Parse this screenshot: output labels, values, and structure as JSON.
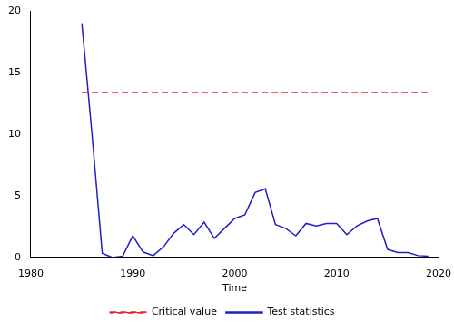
{
  "chart_data": {
    "type": "line",
    "x": [
      1985,
      1986,
      1987,
      1988,
      1989,
      1990,
      1991,
      1992,
      1993,
      1994,
      1995,
      1996,
      1997,
      1998,
      1999,
      2000,
      2001,
      2002,
      2003,
      2004,
      2005,
      2006,
      2007,
      2008,
      2009,
      2010,
      2011,
      2012,
      2013,
      2014,
      2015,
      2016,
      2017,
      2018,
      2019
    ],
    "series": [
      {
        "name": "Critical value",
        "color": "#e8272a",
        "line_style": "dashed",
        "values": [
          13.4,
          13.4,
          13.4,
          13.4,
          13.4,
          13.4,
          13.4,
          13.4,
          13.4,
          13.4,
          13.4,
          13.4,
          13.4,
          13.4,
          13.4,
          13.4,
          13.4,
          13.4,
          13.4,
          13.4,
          13.4,
          13.4,
          13.4,
          13.4,
          13.4,
          13.4,
          13.4,
          13.4,
          13.4,
          13.4,
          13.4,
          13.4,
          13.4,
          13.4,
          13.4
        ]
      },
      {
        "name": "Test statistics",
        "color": "#1f1fc4",
        "line_style": "solid",
        "values": [
          19.0,
          10.0,
          0.4,
          0.05,
          0.15,
          1.8,
          0.5,
          0.2,
          0.9,
          2.0,
          2.7,
          1.9,
          2.9,
          1.6,
          2.4,
          3.2,
          3.5,
          5.3,
          5.6,
          2.7,
          2.4,
          1.8,
          2.8,
          2.6,
          2.8,
          2.8,
          1.9,
          2.6,
          3.0,
          3.2,
          0.7,
          0.45,
          0.45,
          0.2,
          0.15
        ]
      }
    ],
    "xlabel": "Time",
    "xlim": [
      1980,
      2020
    ],
    "xticks": [
      1980,
      1990,
      2000,
      2010,
      2020
    ],
    "ylim": [
      0,
      20
    ],
    "yticks": [
      0,
      5,
      10,
      15,
      20
    ],
    "grid": false,
    "legend": "bottom"
  }
}
